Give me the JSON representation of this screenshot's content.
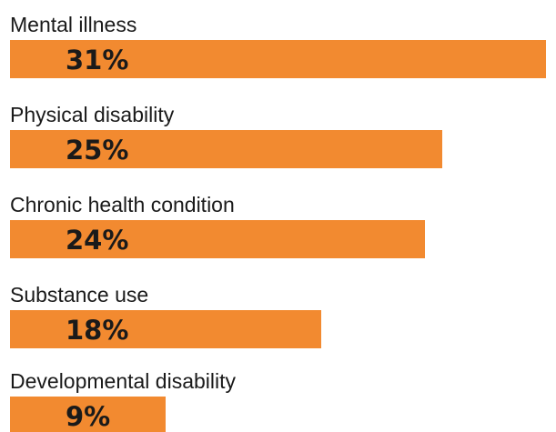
{
  "chart_data": {
    "type": "bar",
    "orientation": "horizontal",
    "categories": [
      "Mental illness",
      "Physical disability",
      "Chronic health condition",
      "Substance use",
      "Developmental disability"
    ],
    "values": [
      31,
      25,
      24,
      18,
      9
    ],
    "value_labels": [
      "31%",
      "25%",
      "24%",
      "18%",
      "9%"
    ],
    "unit": "%",
    "title": "",
    "xlabel": "",
    "ylabel": "",
    "xlim": [
      0,
      31
    ],
    "grid": false,
    "bar_color": "#F28A30"
  }
}
